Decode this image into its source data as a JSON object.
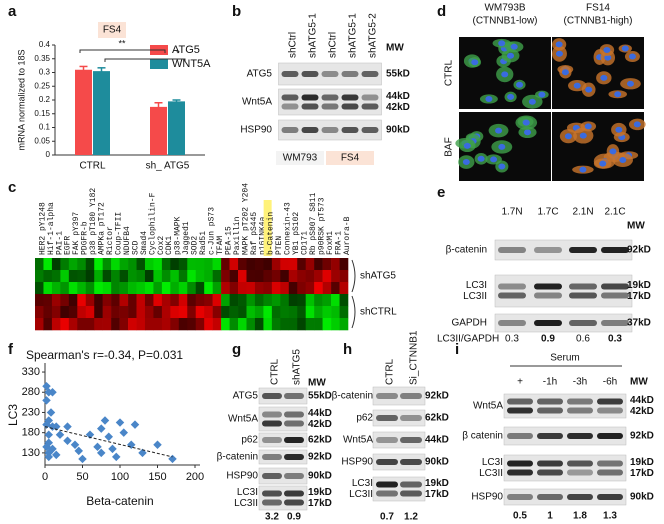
{
  "chart_data": [
    {
      "type": "bar",
      "panel": "a",
      "subtitle": "FS4",
      "ylabel": "mRNA normalized to 18S",
      "categories": [
        "CTRL",
        "sh_ ATG5"
      ],
      "series": [
        {
          "name": "ATG5",
          "color": "#f54a4a",
          "values": [
            0.31,
            0.175
          ],
          "errors": [
            0.012,
            0.015
          ]
        },
        {
          "name": "WNT5A",
          "color": "#1e8c9c",
          "values": [
            0.305,
            0.195
          ],
          "errors": [
            0.012,
            0.005
          ]
        }
      ],
      "ylim": [
        0,
        0.4
      ],
      "yticks": [
        0,
        0.05,
        0.1,
        0.15,
        0.2,
        0.25,
        0.3,
        0.35,
        0.4
      ],
      "annotations": [
        "**",
        "*"
      ]
    },
    {
      "type": "scatter",
      "panel": "f",
      "title": "Spearman's r=-0.34, P=0.031",
      "xlabel": "Beta-catenin",
      "ylabel": "LC3",
      "color": "#4a86c8",
      "x": [
        2,
        5,
        10,
        2,
        8,
        5,
        2,
        10,
        15,
        5,
        20,
        5,
        2,
        10,
        5,
        15,
        5,
        30,
        30,
        40,
        45,
        50,
        60,
        70,
        75,
        75,
        80,
        85,
        90,
        95,
        100,
        105,
        115,
        120,
        130,
        150,
        170
      ],
      "y": [
        295,
        280,
        280,
        260,
        230,
        210,
        200,
        195,
        195,
        175,
        175,
        155,
        145,
        140,
        130,
        125,
        120,
        195,
        160,
        150,
        135,
        115,
        175,
        145,
        130,
        190,
        210,
        170,
        140,
        120,
        205,
        180,
        150,
        200,
        130,
        150,
        115
      ],
      "trend": {
        "x": [
          0,
          170
        ],
        "y": [
          195,
          120
        ]
      },
      "xlim": [
        0,
        200
      ],
      "xticks": [
        0,
        50,
        100,
        150,
        200
      ],
      "ylim": [
        100,
        340
      ],
      "yticks": [
        130,
        180,
        230,
        280,
        330
      ]
    }
  ],
  "panels": {
    "b": {
      "label": "b",
      "lanes": [
        "shCtrl",
        "shATG5-1",
        "shCtrl",
        "shATG5-1",
        "shATG5-2"
      ],
      "mw_header": "MW",
      "rows": [
        {
          "names": [
            "ATG5"
          ],
          "mw": [
            "55kD"
          ]
        },
        {
          "names": [
            "Wnt5A"
          ],
          "mw": [
            "44kD",
            "42kD"
          ]
        },
        {
          "names": [
            "HSP90"
          ],
          "mw": [
            "90kD"
          ]
        }
      ],
      "groups": [
        "WM793",
        "FS4"
      ]
    },
    "c": {
      "label": "c",
      "genes": [
        "HER2 pY1248",
        "Hif-1-alpha",
        "PAI-1",
        "EGFR",
        "FAK pY397",
        "PDGFR-b",
        "p38 pT180 Y182",
        "AMPKa pT172",
        "Rictor",
        "Coup-TFII",
        "NDUFB4",
        "SCD",
        "Smad4",
        "Cyclophilin-F",
        "Cox2",
        "CDK1",
        "p38-MAPK",
        "Jagged1",
        "SOD2",
        "Rad51",
        "c-Jun pS73",
        "TFAM",
        "PEA-15",
        "Paxillin",
        "MAPK pT202 Y204",
        "Raf pS445",
        "p16INK4a",
        "b-Catenin",
        "PTEN",
        "Connexin-43",
        "YB1 pS102",
        "CD171",
        "Rb pS807 S811",
        "p90RSK pT573",
        "FoxM1",
        "FRA-1",
        "Aurora-B"
      ],
      "groups": [
        "shATG5",
        "shCTRL"
      ]
    },
    "d": {
      "label": "d",
      "columns": [
        [
          "WM793B",
          "(CTNNB1-low)"
        ],
        [
          "FS14",
          "(CTNNB1-high)"
        ]
      ],
      "rows": [
        "CTRL",
        "BAF"
      ]
    },
    "e": {
      "label": "e",
      "lanes": [
        "1.7N",
        "1.7C",
        "2.1N",
        "2.1C"
      ],
      "mw_header": "MW",
      "rows": [
        {
          "names": [
            "β-catenin"
          ],
          "mw": [
            "92kD"
          ]
        },
        {
          "names": [
            "LC3I",
            "LC3II"
          ],
          "mw": [
            "19kD",
            "17kD"
          ]
        },
        {
          "names": [
            "GAPDH"
          ],
          "mw": [
            "37kD"
          ]
        }
      ],
      "quant_label": "LC3II/GAPDH",
      "quant": [
        0.3,
        0.9,
        0.6,
        0.3
      ]
    },
    "g": {
      "label": "g",
      "lanes": [
        "CTRL",
        "shATG5"
      ],
      "mw_header": "MW",
      "rows": [
        {
          "names": [
            "ATG5"
          ],
          "mw": [
            "55kD"
          ]
        },
        {
          "names": [
            "Wnt5A"
          ],
          "mw": [
            "44kD",
            "42kD"
          ]
        },
        {
          "names": [
            "p62"
          ],
          "mw": [
            "62kD"
          ]
        },
        {
          "names": [
            "β-catenin"
          ],
          "mw": [
            "92kD"
          ]
        },
        {
          "names": [
            "HSP90"
          ],
          "mw": [
            "90kD"
          ]
        },
        {
          "names": [
            "LC3I",
            "LC3II"
          ],
          "mw": [
            "19kD",
            "17kD"
          ]
        }
      ],
      "quant": [
        3.2,
        0.9
      ]
    },
    "h": {
      "label": "h",
      "lanes": [
        "CTRL",
        "Si_CTNNB1"
      ],
      "rows": [
        {
          "names": [
            "β-catenin"
          ],
          "mw": [
            "92kD"
          ]
        },
        {
          "names": [
            "p62"
          ],
          "mw": [
            "62kD"
          ]
        },
        {
          "names": [
            "Wnt5A"
          ],
          "mw": [
            "44kD"
          ]
        },
        {
          "names": [
            "HSP90"
          ],
          "mw": [
            "90kD"
          ]
        },
        {
          "names": [
            "LC3I",
            "LC3II"
          ],
          "mw": [
            "19kD",
            "17kD"
          ]
        }
      ],
      "quant": [
        0.7,
        1.2
      ]
    },
    "i": {
      "label": "i",
      "header": "Serum",
      "lanes": [
        "+",
        "-1h",
        "-3h",
        "-6h"
      ],
      "mw_header": "MW",
      "rows": [
        {
          "names": [
            "Wnt5A"
          ],
          "mw": [
            "44kD",
            "42kD"
          ]
        },
        {
          "names": [
            "β catenin"
          ],
          "mw": [
            "92kD"
          ]
        },
        {
          "names": [
            "LC3I",
            "LC3II"
          ],
          "mw": [
            "19kD",
            "17kD"
          ]
        },
        {
          "names": [
            "HSP90"
          ],
          "mw": [
            "90kD"
          ]
        }
      ],
      "quant": [
        0.5,
        1,
        1.8,
        1.3
      ]
    }
  }
}
